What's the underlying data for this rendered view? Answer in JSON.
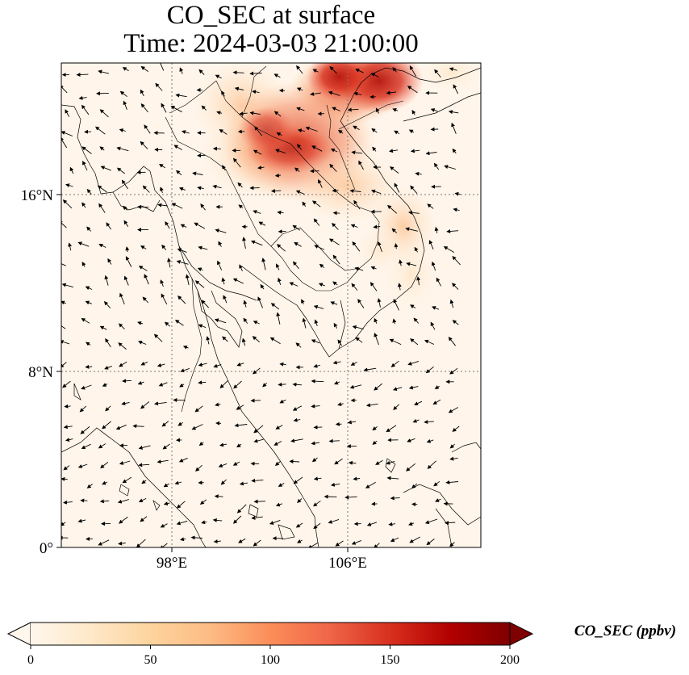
{
  "title": {
    "line1": "CO_SEC at surface",
    "line2": "Time: 2024-03-03 21:00:00"
  },
  "map": {
    "lon_range": [
      93,
      112
    ],
    "lat_range": [
      0,
      22
    ],
    "lat_ticks": [
      {
        "value": 16,
        "label": "16°N"
      },
      {
        "value": 8,
        "label": "8°N"
      },
      {
        "value": 0,
        "label": "0°"
      }
    ],
    "lon_ticks": [
      {
        "value": 98,
        "label": "98°E"
      },
      {
        "value": 106,
        "label": "106°E"
      }
    ],
    "gridlines": true,
    "wind_vectors": true,
    "plume_color_high": "#c0281c",
    "background_color": "#fff5ea"
  },
  "colorbar": {
    "label": "CO_SEC (ppbv)",
    "range": [
      0,
      200
    ],
    "ticks": [
      "0",
      "50",
      "100",
      "150",
      "200"
    ],
    "extend": "both",
    "colormap": "OrRd",
    "stops": [
      "#fff7ec",
      "#fee8c8",
      "#fdd49e",
      "#fdbb84",
      "#fc8d59",
      "#ef6548",
      "#d7301f",
      "#b30000",
      "#7f0000"
    ]
  }
}
